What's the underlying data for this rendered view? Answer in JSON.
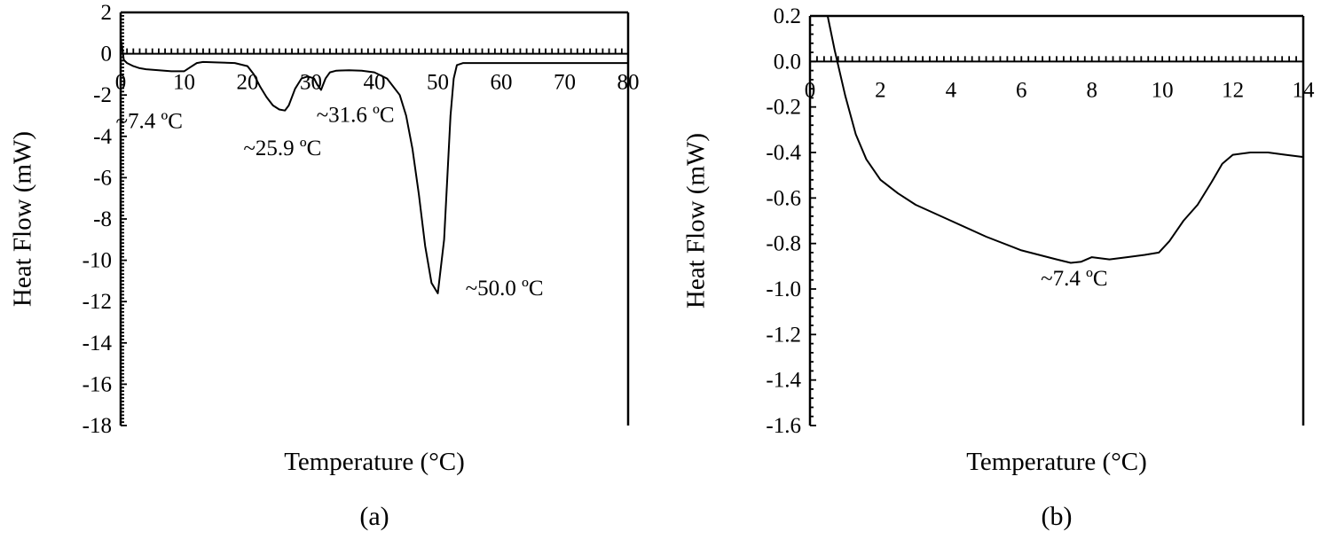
{
  "chart_data": [
    {
      "type": "line",
      "panel_label": "(a)",
      "xlabel": "Temperature (°C)",
      "ylabel": "Heat Flow (mW)",
      "xlim": [
        0,
        80
      ],
      "ylim": [
        -18,
        2
      ],
      "x_ticks": [
        "0",
        "10",
        "20",
        "30",
        "40",
        "50",
        "60",
        "70",
        "80"
      ],
      "y_ticks": [
        "2",
        "0",
        "-2",
        "-4",
        "-6",
        "-8",
        "-10",
        "-12",
        "-14",
        "-16",
        "-18"
      ],
      "grid": false,
      "series": [
        {
          "x": [
            0,
            0.5,
            1,
            2,
            3,
            4,
            6,
            8,
            10,
            11,
            12,
            13,
            15,
            18,
            20,
            21,
            22,
            23,
            24,
            25,
            25.9,
            26.5,
            27.5,
            28.5,
            29.5,
            30.5,
            31,
            31.6,
            32.3,
            33,
            34,
            36,
            38,
            40,
            42,
            44,
            45,
            46,
            47,
            48,
            49,
            50,
            51,
            51.5,
            52,
            52.5,
            53,
            54,
            56,
            60,
            65,
            70,
            75,
            80
          ],
          "y": [
            0.8,
            -0.3,
            -0.45,
            -0.6,
            -0.7,
            -0.75,
            -0.8,
            -0.85,
            -0.85,
            -0.65,
            -0.45,
            -0.4,
            -0.42,
            -0.45,
            -0.6,
            -1.0,
            -1.6,
            -2.1,
            -2.5,
            -2.7,
            -2.75,
            -2.5,
            -1.7,
            -1.2,
            -1.1,
            -1.2,
            -1.5,
            -1.75,
            -1.2,
            -0.9,
            -0.82,
            -0.8,
            -0.82,
            -0.9,
            -1.2,
            -2.0,
            -3.0,
            -4.6,
            -6.8,
            -9.3,
            -11.1,
            -11.6,
            -9.0,
            -6.0,
            -3.0,
            -1.2,
            -0.55,
            -0.45,
            -0.45,
            -0.45,
            -0.45,
            -0.45,
            -0.45,
            -0.45
          ]
        }
      ],
      "annotations": [
        {
          "text": "~7.4 ºC",
          "x": 4.5,
          "y": -3.6
        },
        {
          "text": "~25.9 ºC",
          "x": 25.5,
          "y": -4.9
        },
        {
          "text": "~31.6 ºC",
          "x": 37,
          "y": -3.3
        },
        {
          "text": "~50.0 ºC",
          "x": 60.5,
          "y": -11.7
        }
      ]
    },
    {
      "type": "line",
      "panel_label": "(b)",
      "xlabel": "Temperature (°C)",
      "ylabel": "Heat Flow (mW)",
      "xlim": [
        0,
        14
      ],
      "ylim": [
        -1.6,
        0.2
      ],
      "x_ticks": [
        "0",
        "2",
        "4",
        "6",
        "8",
        "10",
        "12",
        "14"
      ],
      "y_ticks": [
        "0.2",
        "0.0",
        "-0.2",
        "-0.4",
        "-0.6",
        "-0.8",
        "-1.0",
        "-1.2",
        "-1.4",
        "-1.6"
      ],
      "grid": false,
      "series": [
        {
          "x": [
            0.5,
            0.7,
            1.0,
            1.3,
            1.6,
            2.0,
            2.5,
            3.0,
            4.0,
            5.0,
            6.0,
            7.0,
            7.4,
            7.7,
            8.0,
            8.5,
            9.0,
            9.5,
            9.9,
            10.2,
            10.6,
            11.0,
            11.4,
            11.7,
            12.0,
            12.5,
            13.0,
            13.5,
            14.0
          ],
          "y": [
            0.2,
            0.05,
            -0.15,
            -0.32,
            -0.43,
            -0.52,
            -0.58,
            -0.63,
            -0.7,
            -0.77,
            -0.83,
            -0.87,
            -0.885,
            -0.88,
            -0.86,
            -0.87,
            -0.86,
            -0.85,
            -0.84,
            -0.79,
            -0.7,
            -0.63,
            -0.53,
            -0.45,
            -0.41,
            -0.4,
            -0.4,
            -0.41,
            -0.42
          ]
        }
      ],
      "annotations": [
        {
          "text": "~7.4 ºC",
          "x": 7.5,
          "y": -0.985
        }
      ]
    }
  ]
}
